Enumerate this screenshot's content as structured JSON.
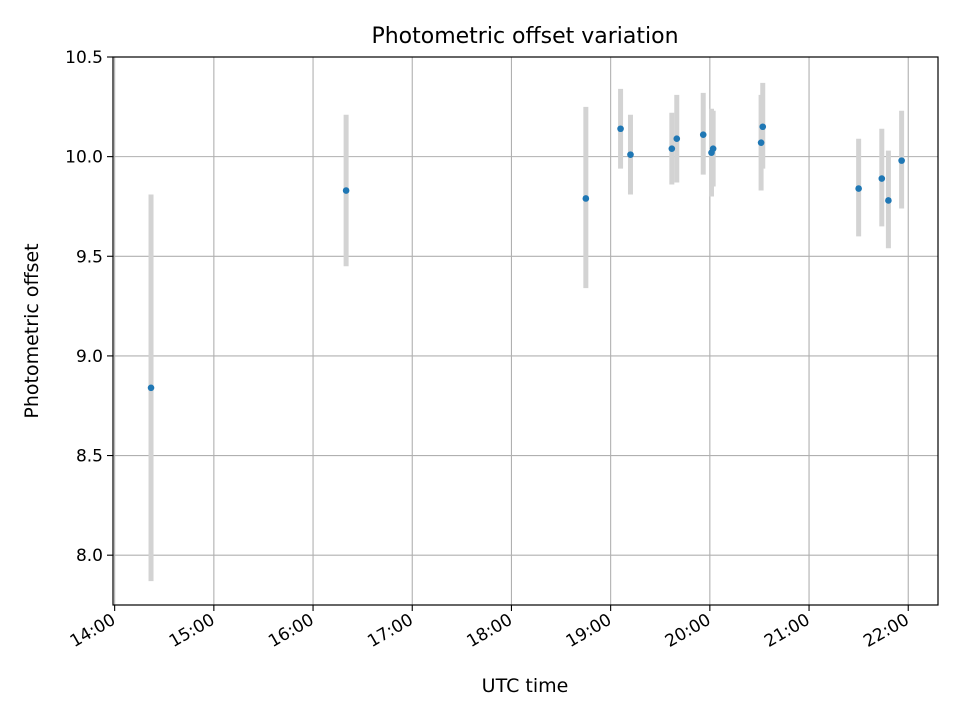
{
  "chart_data": {
    "type": "scatter",
    "title": "Photometric offset variation",
    "xlabel": "UTC time",
    "ylabel": "Photometric offset",
    "x_axis_type": "time",
    "xlim": [
      "13:59",
      "22:18"
    ],
    "ylim": [
      7.75,
      10.5
    ],
    "x_ticks": [
      "14:00",
      "15:00",
      "16:00",
      "17:00",
      "18:00",
      "19:00",
      "20:00",
      "21:00",
      "22:00"
    ],
    "y_ticks": [
      "8.0",
      "8.5",
      "9.0",
      "9.5",
      "10.0",
      "10.5"
    ],
    "grid": true,
    "legend": "none",
    "series": [
      {
        "marker_color": "#1f77b4",
        "errorbar_color": "#d3d3d3",
        "points": [
          {
            "time": "14:22",
            "y": 8.84,
            "err_low": 7.87,
            "err_high": 9.81
          },
          {
            "time": "16:20",
            "y": 9.83,
            "err_low": 9.45,
            "err_high": 10.21
          },
          {
            "time": "18:45",
            "y": 9.79,
            "err_low": 9.34,
            "err_high": 10.25
          },
          {
            "time": "19:06",
            "y": 10.14,
            "err_low": 9.94,
            "err_high": 10.34
          },
          {
            "time": "19:12",
            "y": 10.01,
            "err_low": 9.81,
            "err_high": 10.21
          },
          {
            "time": "19:37",
            "y": 10.04,
            "err_low": 9.86,
            "err_high": 10.22
          },
          {
            "time": "19:40",
            "y": 10.09,
            "err_low": 9.87,
            "err_high": 10.31
          },
          {
            "time": "19:56",
            "y": 10.11,
            "err_low": 9.91,
            "err_high": 10.32
          },
          {
            "time": "20:01",
            "y": 10.02,
            "err_low": 9.8,
            "err_high": 10.24
          },
          {
            "time": "20:02",
            "y": 10.04,
            "err_low": 9.85,
            "err_high": 10.23
          },
          {
            "time": "20:31",
            "y": 10.07,
            "err_low": 9.83,
            "err_high": 10.31
          },
          {
            "time": "20:32",
            "y": 10.15,
            "err_low": 9.94,
            "err_high": 10.37
          },
          {
            "time": "21:30",
            "y": 9.84,
            "err_low": 9.6,
            "err_high": 10.09
          },
          {
            "time": "21:44",
            "y": 9.89,
            "err_low": 9.65,
            "err_high": 10.14
          },
          {
            "time": "21:48",
            "y": 9.78,
            "err_low": 9.54,
            "err_high": 10.03
          },
          {
            "time": "21:56",
            "y": 9.98,
            "err_low": 9.74,
            "err_high": 10.23
          }
        ]
      }
    ]
  }
}
